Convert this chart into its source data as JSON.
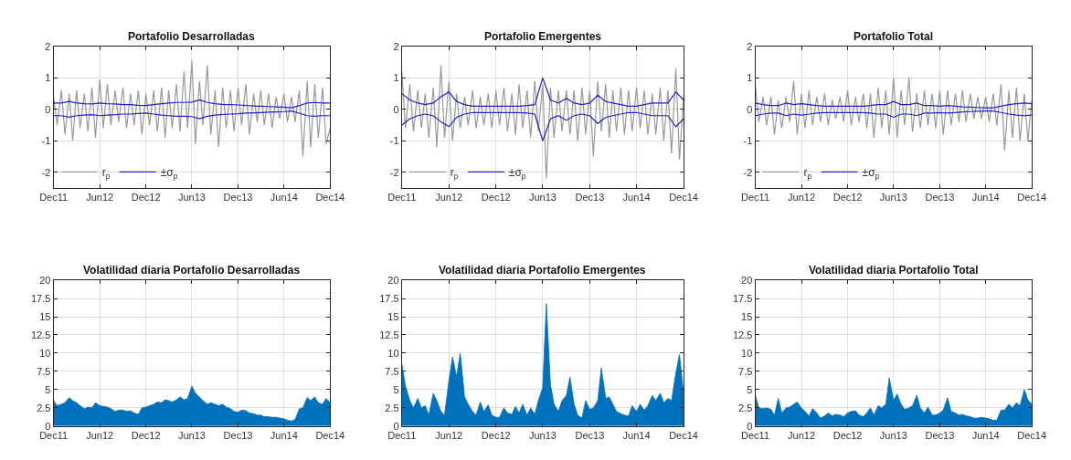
{
  "chart_data": [
    {
      "type": "line",
      "title": "Portafolio Desarrolladas",
      "x": [
        "2011-12-01",
        "2011-12-15",
        "2012-01-01",
        "2012-01-15",
        "2012-02-01",
        "2012-02-15",
        "2012-03-01",
        "2012-03-15",
        "2012-04-01",
        "2012-04-15",
        "2012-05-01",
        "2012-05-15",
        "2012-06-01",
        "2012-06-15",
        "2012-07-01",
        "2012-07-15",
        "2012-08-01",
        "2012-08-15",
        "2012-09-01",
        "2012-09-15",
        "2012-10-01",
        "2012-10-15",
        "2012-11-01",
        "2012-11-15",
        "2012-12-01",
        "2012-12-15",
        "2013-01-01",
        "2013-01-15",
        "2013-02-01",
        "2013-02-15",
        "2013-03-01",
        "2013-03-15",
        "2013-04-01",
        "2013-04-15",
        "2013-05-01",
        "2013-05-15",
        "2013-06-01",
        "2013-06-15",
        "2013-07-01",
        "2013-07-15",
        "2013-08-01",
        "2013-08-15",
        "2013-09-01",
        "2013-09-15",
        "2013-10-01",
        "2013-10-15",
        "2013-11-01",
        "2013-11-15",
        "2013-12-01",
        "2013-12-15",
        "2014-01-01",
        "2014-01-15",
        "2014-02-01",
        "2014-02-15",
        "2014-03-01",
        "2014-03-15",
        "2014-04-01",
        "2014-04-15",
        "2014-05-01",
        "2014-05-15",
        "2014-06-01",
        "2014-06-15",
        "2014-07-01",
        "2014-07-15",
        "2014-08-01",
        "2014-08-15",
        "2014-09-01",
        "2014-09-15",
        "2014-10-01",
        "2014-10-15",
        "2014-11-01",
        "2014-11-15",
        "2014-12-01"
      ],
      "xlim": [
        "2011-12-01",
        "2014-12-01"
      ],
      "xticks": [
        {
          "value": "2011-12-01",
          "label": "Dec11"
        },
        {
          "value": "2012-06-01",
          "label": "Jun12"
        },
        {
          "value": "2012-12-01",
          "label": "Dec12"
        },
        {
          "value": "2013-06-01",
          "label": "Jun13"
        },
        {
          "value": "2013-12-01",
          "label": "Dec13"
        },
        {
          "value": "2014-06-01",
          "label": "Jun14"
        },
        {
          "value": "2014-12-01",
          "label": "Dec14"
        }
      ],
      "ylim": [
        -2.5,
        2
      ],
      "yticks": [
        -2,
        -1,
        0,
        1,
        2
      ],
      "grid": true,
      "legend": "bottom left",
      "series": [
        {
          "name": "r$_{p}$",
          "color": "#999999",
          "values": [
            0.4,
            -0.5,
            0.6,
            -0.8,
            0.5,
            -1.0,
            0.6,
            -0.6,
            0.5,
            -0.7,
            0.7,
            -0.9,
            0.95,
            -0.6,
            0.8,
            -0.5,
            0.6,
            -0.4,
            0.7,
            -0.6,
            0.5,
            -0.5,
            0.6,
            -0.8,
            0.5,
            -0.5,
            0.6,
            -0.7,
            0.7,
            -0.9,
            0.6,
            -0.6,
            0.8,
            -0.7,
            1.2,
            -0.6,
            1.55,
            -1.1,
            0.9,
            -0.5,
            1.4,
            -0.8,
            0.6,
            -1.2,
            0.7,
            -0.6,
            0.6,
            -0.7,
            0.7,
            -0.5,
            0.8,
            -0.8,
            0.5,
            -0.4,
            0.6,
            -0.5,
            0.5,
            -0.6,
            0.4,
            -0.3,
            0.5,
            -0.4,
            0.4,
            -0.4,
            0.6,
            -1.5,
            0.9,
            -1.2,
            0.8,
            -0.9,
            0.7,
            -1.1,
            -0.6
          ]
        },
        {
          "name": "±σ$_{p}$",
          "color": "#1f1fcc",
          "x": [
            "2011-12-01",
            "2012-01-01",
            "2012-02-01",
            "2012-03-01",
            "2012-04-01",
            "2012-05-01",
            "2012-06-01",
            "2012-07-01",
            "2012-08-01",
            "2012-09-01",
            "2012-10-01",
            "2012-11-01",
            "2012-12-01",
            "2013-01-01",
            "2013-02-01",
            "2013-03-01",
            "2013-04-01",
            "2013-05-01",
            "2013-06-01",
            "2013-07-01",
            "2013-08-01",
            "2013-09-01",
            "2013-10-01",
            "2013-11-01",
            "2013-12-01",
            "2014-01-01",
            "2014-02-01",
            "2014-03-01",
            "2014-04-01",
            "2014-05-01",
            "2014-06-01",
            "2014-07-01",
            "2014-08-01",
            "2014-09-01",
            "2014-10-01",
            "2014-11-01",
            "2014-12-01"
          ],
          "values": [
            0.2,
            0.2,
            0.25,
            0.2,
            0.18,
            0.17,
            0.2,
            0.18,
            0.17,
            0.15,
            0.15,
            0.13,
            0.12,
            0.15,
            0.18,
            0.2,
            0.22,
            0.22,
            0.23,
            0.3,
            0.22,
            0.18,
            0.16,
            0.15,
            0.14,
            0.12,
            0.11,
            0.1,
            0.09,
            0.08,
            0.07,
            0.05,
            0.12,
            0.2,
            0.22,
            0.2,
            0.2
          ]
        },
        {
          "color": "#1f1fcc",
          "x": [
            "2011-12-01",
            "2012-01-01",
            "2012-02-01",
            "2012-03-01",
            "2012-04-01",
            "2012-05-01",
            "2012-06-01",
            "2012-07-01",
            "2012-08-01",
            "2012-09-01",
            "2012-10-01",
            "2012-11-01",
            "2012-12-01",
            "2013-01-01",
            "2013-02-01",
            "2013-03-01",
            "2013-04-01",
            "2013-05-01",
            "2013-06-01",
            "2013-07-01",
            "2013-08-01",
            "2013-09-01",
            "2013-10-01",
            "2013-11-01",
            "2013-12-01",
            "2014-01-01",
            "2014-02-01",
            "2014-03-01",
            "2014-04-01",
            "2014-05-01",
            "2014-06-01",
            "2014-07-01",
            "2014-08-01",
            "2014-09-01",
            "2014-10-01",
            "2014-11-01",
            "2014-12-01"
          ],
          "values": [
            -0.2,
            -0.2,
            -0.25,
            -0.2,
            -0.18,
            -0.17,
            -0.2,
            -0.18,
            -0.17,
            -0.15,
            -0.15,
            -0.13,
            -0.12,
            -0.15,
            -0.18,
            -0.2,
            -0.22,
            -0.22,
            -0.23,
            -0.3,
            -0.22,
            -0.18,
            -0.16,
            -0.15,
            -0.14,
            -0.12,
            -0.11,
            -0.1,
            -0.09,
            -0.08,
            -0.07,
            -0.05,
            -0.12,
            -0.2,
            -0.22,
            -0.2,
            -0.2
          ]
        }
      ]
    },
    {
      "type": "line",
      "title": "Portafolio Emergentes",
      "x": [
        "2011-12-01",
        "2011-12-15",
        "2012-01-01",
        "2012-01-15",
        "2012-02-01",
        "2012-02-15",
        "2012-03-01",
        "2012-03-15",
        "2012-04-01",
        "2012-04-15",
        "2012-05-01",
        "2012-05-15",
        "2012-06-01",
        "2012-06-15",
        "2012-07-01",
        "2012-07-15",
        "2012-08-01",
        "2012-08-15",
        "2012-09-01",
        "2012-09-15",
        "2012-10-01",
        "2012-10-15",
        "2012-11-01",
        "2012-11-15",
        "2012-12-01",
        "2012-12-15",
        "2013-01-01",
        "2013-01-15",
        "2013-02-01",
        "2013-02-15",
        "2013-03-01",
        "2013-03-15",
        "2013-04-01",
        "2013-04-15",
        "2013-05-01",
        "2013-05-15",
        "2013-06-01",
        "2013-06-15",
        "2013-07-01",
        "2013-07-15",
        "2013-08-01",
        "2013-08-15",
        "2013-09-01",
        "2013-09-15",
        "2013-10-01",
        "2013-10-15",
        "2013-11-01",
        "2013-11-15",
        "2013-12-01",
        "2013-12-15",
        "2014-01-01",
        "2014-01-15",
        "2014-02-01",
        "2014-02-15",
        "2014-03-01",
        "2014-03-15",
        "2014-04-01",
        "2014-04-15",
        "2014-05-01",
        "2014-05-15",
        "2014-06-01",
        "2014-06-15",
        "2014-07-01",
        "2014-07-15",
        "2014-08-01",
        "2014-08-15",
        "2014-09-01",
        "2014-09-15",
        "2014-10-01",
        "2014-10-15",
        "2014-11-01",
        "2014-11-15",
        "2014-12-01"
      ],
      "xlim": [
        "2011-12-01",
        "2014-12-01"
      ],
      "xticks": [
        {
          "value": "2011-12-01",
          "label": "Dec11"
        },
        {
          "value": "2012-06-01",
          "label": "Jun12"
        },
        {
          "value": "2012-12-01",
          "label": "Dec12"
        },
        {
          "value": "2013-06-01",
          "label": "Jun13"
        },
        {
          "value": "2013-12-01",
          "label": "Dec13"
        },
        {
          "value": "2014-06-01",
          "label": "Jun14"
        },
        {
          "value": "2014-12-01",
          "label": "Dec14"
        }
      ],
      "ylim": [
        -2.5,
        2
      ],
      "yticks": [
        -2,
        -1,
        0,
        1,
        2
      ],
      "grid": true,
      "legend": "bottom left",
      "series": [
        {
          "name": "r$_{p}$",
          "color": "#999999",
          "values": [
            1.2,
            -0.6,
            0.8,
            -0.7,
            0.6,
            -0.6,
            0.5,
            -0.9,
            0.7,
            -1.2,
            1.4,
            -0.9,
            0.9,
            -1.0,
            0.5,
            -0.6,
            0.4,
            -0.5,
            0.6,
            -0.6,
            0.4,
            -0.5,
            0.5,
            -0.6,
            0.6,
            -0.5,
            0.7,
            -0.7,
            0.5,
            -0.8,
            0.8,
            -0.6,
            0.6,
            -0.9,
            0.9,
            -0.7,
            0.8,
            -2.2,
            0.7,
            -0.9,
            0.6,
            -0.7,
            0.6,
            -0.8,
            0.6,
            -1.0,
            0.7,
            -0.8,
            0.6,
            -1.5,
            0.9,
            -0.7,
            0.8,
            -0.9,
            0.6,
            -0.7,
            0.7,
            -0.8,
            0.6,
            -0.7,
            0.7,
            -0.6,
            0.6,
            -0.8,
            0.5,
            -0.8,
            0.7,
            -1.0,
            0.6,
            -1.4,
            1.3,
            -1.6,
            0.4
          ]
        },
        {
          "name": "±σ$_{p}$",
          "color": "#1f1fcc",
          "x": [
            "2011-12-01",
            "2012-01-01",
            "2012-02-01",
            "2012-03-01",
            "2012-04-01",
            "2012-05-01",
            "2012-06-01",
            "2012-07-01",
            "2012-08-01",
            "2012-09-01",
            "2012-10-01",
            "2012-11-01",
            "2012-12-01",
            "2013-01-01",
            "2013-02-01",
            "2013-03-01",
            "2013-04-01",
            "2013-05-01",
            "2013-06-01",
            "2013-07-01",
            "2013-08-01",
            "2013-09-01",
            "2013-10-01",
            "2013-11-01",
            "2013-12-01",
            "2014-01-01",
            "2014-02-01",
            "2014-03-01",
            "2014-04-01",
            "2014-05-01",
            "2014-06-01",
            "2014-07-01",
            "2014-08-01",
            "2014-09-01",
            "2014-10-01",
            "2014-11-01",
            "2014-12-01"
          ],
          "values": [
            0.5,
            0.3,
            0.2,
            0.15,
            0.2,
            0.4,
            0.55,
            0.25,
            0.15,
            0.1,
            0.1,
            0.1,
            0.1,
            0.1,
            0.1,
            0.1,
            0.12,
            0.15,
            1.0,
            0.3,
            0.2,
            0.35,
            0.2,
            0.15,
            0.2,
            0.45,
            0.25,
            0.2,
            0.15,
            0.1,
            0.1,
            0.15,
            0.2,
            0.2,
            0.2,
            0.55,
            0.3
          ]
        },
        {
          "color": "#1f1fcc",
          "x": [
            "2011-12-01",
            "2012-01-01",
            "2012-02-01",
            "2012-03-01",
            "2012-04-01",
            "2012-05-01",
            "2012-06-01",
            "2012-07-01",
            "2012-08-01",
            "2012-09-01",
            "2012-10-01",
            "2012-11-01",
            "2012-12-01",
            "2013-01-01",
            "2013-02-01",
            "2013-03-01",
            "2013-04-01",
            "2013-05-01",
            "2013-06-01",
            "2013-07-01",
            "2013-08-01",
            "2013-09-01",
            "2013-10-01",
            "2013-11-01",
            "2013-12-01",
            "2014-01-01",
            "2014-02-01",
            "2014-03-01",
            "2014-04-01",
            "2014-05-01",
            "2014-06-01",
            "2014-07-01",
            "2014-08-01",
            "2014-09-01",
            "2014-10-01",
            "2014-11-01",
            "2014-12-01"
          ],
          "values": [
            -0.5,
            -0.3,
            -0.2,
            -0.15,
            -0.2,
            -0.4,
            -0.55,
            -0.25,
            -0.15,
            -0.1,
            -0.1,
            -0.1,
            -0.1,
            -0.1,
            -0.1,
            -0.1,
            -0.12,
            -0.15,
            -1.0,
            -0.3,
            -0.2,
            -0.35,
            -0.2,
            -0.15,
            -0.2,
            -0.45,
            -0.25,
            -0.2,
            -0.15,
            -0.1,
            -0.1,
            -0.15,
            -0.2,
            -0.2,
            -0.2,
            -0.55,
            -0.3
          ]
        }
      ]
    },
    {
      "type": "line",
      "title": "Portafolio Total",
      "x": [
        "2011-12-01",
        "2011-12-15",
        "2012-01-01",
        "2012-01-15",
        "2012-02-01",
        "2012-02-15",
        "2012-03-01",
        "2012-03-15",
        "2012-04-01",
        "2012-04-15",
        "2012-05-01",
        "2012-05-15",
        "2012-06-01",
        "2012-06-15",
        "2012-07-01",
        "2012-07-15",
        "2012-08-01",
        "2012-08-15",
        "2012-09-01",
        "2012-09-15",
        "2012-10-01",
        "2012-10-15",
        "2012-11-01",
        "2012-11-15",
        "2012-12-01",
        "2012-12-15",
        "2013-01-01",
        "2013-01-15",
        "2013-02-01",
        "2013-02-15",
        "2013-03-01",
        "2013-03-15",
        "2013-04-01",
        "2013-04-15",
        "2013-05-01",
        "2013-05-15",
        "2013-06-01",
        "2013-06-15",
        "2013-07-01",
        "2013-07-15",
        "2013-08-01",
        "2013-08-15",
        "2013-09-01",
        "2013-09-15",
        "2013-10-01",
        "2013-10-15",
        "2013-11-01",
        "2013-11-15",
        "2013-12-01",
        "2013-12-15",
        "2014-01-01",
        "2014-01-15",
        "2014-02-01",
        "2014-02-15",
        "2014-03-01",
        "2014-03-15",
        "2014-04-01",
        "2014-04-15",
        "2014-05-01",
        "2014-05-15",
        "2014-06-01",
        "2014-06-15",
        "2014-07-01",
        "2014-07-15",
        "2014-08-01",
        "2014-08-15",
        "2014-09-01",
        "2014-09-15",
        "2014-10-01",
        "2014-10-15",
        "2014-11-01",
        "2014-11-15",
        "2014-12-01"
      ],
      "xlim": [
        "2011-12-01",
        "2014-12-01"
      ],
      "xticks": [
        {
          "value": "2011-12-01",
          "label": "Dec11"
        },
        {
          "value": "2012-06-01",
          "label": "Jun12"
        },
        {
          "value": "2012-12-01",
          "label": "Dec12"
        },
        {
          "value": "2013-06-01",
          "label": "Jun13"
        },
        {
          "value": "2013-12-01",
          "label": "Dec13"
        },
        {
          "value": "2014-06-01",
          "label": "Jun14"
        },
        {
          "value": "2014-12-01",
          "label": "Dec14"
        }
      ],
      "ylim": [
        -2.5,
        2
      ],
      "yticks": [
        -2,
        -1,
        0,
        1,
        2
      ],
      "grid": true,
      "legend": "bottom left",
      "series": [
        {
          "name": "r$_{p}$",
          "color": "#999999",
          "values": [
            0.8,
            -0.4,
            0.4,
            -0.5,
            0.4,
            -0.8,
            0.3,
            -0.6,
            0.4,
            -0.4,
            0.9,
            -0.8,
            0.5,
            -0.6,
            0.6,
            -0.5,
            0.4,
            -0.4,
            0.5,
            -0.5,
            0.3,
            -0.3,
            0.4,
            -0.4,
            0.6,
            -0.5,
            0.4,
            -0.4,
            0.5,
            -0.6,
            0.5,
            -0.9,
            0.7,
            -0.6,
            0.6,
            -0.8,
            1.0,
            -0.9,
            0.6,
            -0.5,
            1.0,
            -0.7,
            0.5,
            -0.6,
            0.6,
            -0.5,
            0.5,
            -0.6,
            0.6,
            -0.8,
            0.6,
            -0.5,
            0.5,
            -0.4,
            0.6,
            -0.4,
            0.5,
            -0.3,
            0.4,
            -0.3,
            0.4,
            -0.4,
            0.5,
            -0.5,
            0.8,
            -1.3,
            0.6,
            -0.9,
            0.7,
            -1.0,
            0.5,
            -1.0,
            0.3
          ]
        },
        {
          "name": "±σ$_{p}$",
          "color": "#1f1fcc",
          "x": [
            "2011-12-01",
            "2012-01-01",
            "2012-02-01",
            "2012-03-01",
            "2012-04-01",
            "2012-05-01",
            "2012-06-01",
            "2012-07-01",
            "2012-08-01",
            "2012-09-01",
            "2012-10-01",
            "2012-11-01",
            "2012-12-01",
            "2013-01-01",
            "2013-02-01",
            "2013-03-01",
            "2013-04-01",
            "2013-05-01",
            "2013-06-01",
            "2013-07-01",
            "2013-08-01",
            "2013-09-01",
            "2013-10-01",
            "2013-11-01",
            "2013-12-01",
            "2014-01-01",
            "2014-02-01",
            "2014-03-01",
            "2014-04-01",
            "2014-05-01",
            "2014-06-01",
            "2014-07-01",
            "2014-08-01",
            "2014-09-01",
            "2014-10-01",
            "2014-11-01",
            "2014-12-01"
          ],
          "values": [
            0.2,
            0.15,
            0.12,
            0.12,
            0.2,
            0.15,
            0.18,
            0.15,
            0.12,
            0.1,
            0.1,
            0.1,
            0.1,
            0.1,
            0.1,
            0.12,
            0.15,
            0.15,
            0.25,
            0.15,
            0.15,
            0.2,
            0.12,
            0.12,
            0.1,
            0.12,
            0.1,
            0.08,
            0.07,
            0.06,
            0.05,
            0.05,
            0.1,
            0.15,
            0.18,
            0.2,
            0.18
          ]
        },
        {
          "color": "#1f1fcc",
          "x": [
            "2011-12-01",
            "2012-01-01",
            "2012-02-01",
            "2012-03-01",
            "2012-04-01",
            "2012-05-01",
            "2012-06-01",
            "2012-07-01",
            "2012-08-01",
            "2012-09-01",
            "2012-10-01",
            "2012-11-01",
            "2012-12-01",
            "2013-01-01",
            "2013-02-01",
            "2013-03-01",
            "2013-04-01",
            "2013-05-01",
            "2013-06-01",
            "2013-07-01",
            "2013-08-01",
            "2013-09-01",
            "2013-10-01",
            "2013-11-01",
            "2013-12-01",
            "2014-01-01",
            "2014-02-01",
            "2014-03-01",
            "2014-04-01",
            "2014-05-01",
            "2014-06-01",
            "2014-07-01",
            "2014-08-01",
            "2014-09-01",
            "2014-10-01",
            "2014-11-01",
            "2014-12-01"
          ],
          "values": [
            -0.2,
            -0.15,
            -0.12,
            -0.12,
            -0.2,
            -0.15,
            -0.18,
            -0.15,
            -0.12,
            -0.1,
            -0.1,
            -0.1,
            -0.1,
            -0.1,
            -0.1,
            -0.12,
            -0.15,
            -0.15,
            -0.25,
            -0.15,
            -0.15,
            -0.2,
            -0.12,
            -0.12,
            -0.1,
            -0.12,
            -0.1,
            -0.08,
            -0.07,
            -0.06,
            -0.05,
            -0.05,
            -0.1,
            -0.15,
            -0.18,
            -0.2,
            -0.18
          ]
        }
      ]
    },
    {
      "type": "area",
      "title": "Volatilidad diaria Portafolio Desarrolladas",
      "x": [
        "2011-12-01",
        "2011-12-15",
        "2012-01-01",
        "2012-01-15",
        "2012-02-01",
        "2012-02-15",
        "2012-03-01",
        "2012-03-15",
        "2012-04-01",
        "2012-04-15",
        "2012-05-01",
        "2012-05-15",
        "2012-06-01",
        "2012-06-15",
        "2012-07-01",
        "2012-07-15",
        "2012-08-01",
        "2012-08-15",
        "2012-09-01",
        "2012-09-15",
        "2012-10-01",
        "2012-10-15",
        "2012-11-01",
        "2012-11-15",
        "2012-12-01",
        "2012-12-15",
        "2013-01-01",
        "2013-01-15",
        "2013-02-01",
        "2013-02-15",
        "2013-03-01",
        "2013-03-15",
        "2013-04-01",
        "2013-04-15",
        "2013-05-01",
        "2013-05-15",
        "2013-06-01",
        "2013-06-15",
        "2013-07-01",
        "2013-07-15",
        "2013-08-01",
        "2013-08-15",
        "2013-09-01",
        "2013-09-15",
        "2013-10-01",
        "2013-10-15",
        "2013-11-01",
        "2013-11-15",
        "2013-12-01",
        "2013-12-15",
        "2014-01-01",
        "2014-01-15",
        "2014-02-01",
        "2014-02-15",
        "2014-03-01",
        "2014-03-15",
        "2014-04-01",
        "2014-04-15",
        "2014-05-01",
        "2014-05-15",
        "2014-06-01",
        "2014-06-15",
        "2014-07-01",
        "2014-07-15",
        "2014-08-01",
        "2014-08-15",
        "2014-09-01",
        "2014-09-15",
        "2014-10-01",
        "2014-10-15",
        "2014-11-01",
        "2014-11-15",
        "2014-12-01"
      ],
      "xlim": [
        "2011-12-01",
        "2014-12-01"
      ],
      "xticks": [
        {
          "value": "2011-12-01",
          "label": "Dec11"
        },
        {
          "value": "2012-06-01",
          "label": "Jun12"
        },
        {
          "value": "2012-12-01",
          "label": "Dec12"
        },
        {
          "value": "2013-06-01",
          "label": "Jun13"
        },
        {
          "value": "2013-12-01",
          "label": "Dec13"
        },
        {
          "value": "2014-06-01",
          "label": "Jun14"
        },
        {
          "value": "2014-12-01",
          "label": "Dec14"
        }
      ],
      "ylim": [
        0,
        20
      ],
      "yticks": [
        0,
        2.5,
        5,
        7.5,
        10,
        12.5,
        15,
        17.5,
        20
      ],
      "grid": true,
      "series": [
        {
          "color": "#0072bd",
          "values": [
            3.5,
            2.8,
            3.0,
            3.2,
            3.9,
            3.5,
            3.2,
            2.8,
            2.4,
            2.6,
            2.5,
            3.2,
            2.8,
            2.7,
            2.6,
            2.4,
            2.0,
            2.2,
            2.2,
            2.0,
            2.1,
            1.8,
            1.6,
            2.5,
            2.6,
            2.8,
            3.0,
            3.3,
            3.2,
            3.6,
            3.5,
            3.3,
            3.6,
            4.0,
            3.6,
            3.8,
            5.5,
            4.5,
            4.0,
            3.5,
            3.0,
            3.2,
            3.0,
            2.8,
            3.0,
            2.6,
            2.4,
            2.0,
            1.9,
            2.2,
            2.1,
            1.8,
            1.7,
            1.5,
            1.5,
            1.3,
            1.3,
            1.2,
            1.2,
            1.1,
            1.0,
            0.8,
            0.7,
            0.9,
            2.4,
            2.5,
            3.9,
            3.5,
            4.0,
            3.2,
            3.0,
            3.8,
            3.2
          ]
        }
      ]
    },
    {
      "type": "area",
      "title": "Volatilidad diaria Portafolio Emergentes",
      "x": [
        "2011-12-01",
        "2011-12-15",
        "2012-01-01",
        "2012-01-15",
        "2012-02-01",
        "2012-02-15",
        "2012-03-01",
        "2012-03-15",
        "2012-04-01",
        "2012-04-15",
        "2012-05-01",
        "2012-05-15",
        "2012-06-01",
        "2012-06-15",
        "2012-07-01",
        "2012-07-15",
        "2012-08-01",
        "2012-08-15",
        "2012-09-01",
        "2012-09-15",
        "2012-10-01",
        "2012-10-15",
        "2012-11-01",
        "2012-11-15",
        "2012-12-01",
        "2012-12-15",
        "2013-01-01",
        "2013-01-15",
        "2013-02-01",
        "2013-02-15",
        "2013-03-01",
        "2013-03-15",
        "2013-04-01",
        "2013-04-15",
        "2013-05-01",
        "2013-05-15",
        "2013-06-01",
        "2013-06-15",
        "2013-07-01",
        "2013-07-15",
        "2013-08-01",
        "2013-08-15",
        "2013-09-01",
        "2013-09-15",
        "2013-10-01",
        "2013-10-15",
        "2013-11-01",
        "2013-11-15",
        "2013-12-01",
        "2013-12-15",
        "2014-01-01",
        "2014-01-15",
        "2014-02-01",
        "2014-02-15",
        "2014-03-01",
        "2014-03-15",
        "2014-04-01",
        "2014-04-15",
        "2014-05-01",
        "2014-05-15",
        "2014-06-01",
        "2014-06-15",
        "2014-07-01",
        "2014-07-15",
        "2014-08-01",
        "2014-08-15",
        "2014-09-01",
        "2014-09-15",
        "2014-10-01",
        "2014-10-15",
        "2014-11-01",
        "2014-11-15",
        "2014-12-01"
      ],
      "xlim": [
        "2011-12-01",
        "2014-12-01"
      ],
      "xticks": [
        {
          "value": "2011-12-01",
          "label": "Dec11"
        },
        {
          "value": "2012-06-01",
          "label": "Jun12"
        },
        {
          "value": "2012-12-01",
          "label": "Dec12"
        },
        {
          "value": "2013-06-01",
          "label": "Jun13"
        },
        {
          "value": "2013-12-01",
          "label": "Dec13"
        },
        {
          "value": "2014-06-01",
          "label": "Jun14"
        },
        {
          "value": "2014-12-01",
          "label": "Dec14"
        }
      ],
      "ylim": [
        0,
        20
      ],
      "yticks": [
        0,
        2.5,
        5,
        7.5,
        10,
        12.5,
        15,
        17.5,
        20
      ],
      "grid": true,
      "series": [
        {
          "color": "#0072bd",
          "values": [
            8.5,
            5.5,
            3.5,
            2.5,
            3.8,
            2.5,
            2.8,
            1.5,
            4.5,
            3.5,
            2.0,
            1.5,
            6.2,
            9.5,
            6.8,
            10.0,
            4.0,
            3.0,
            2.0,
            1.5,
            3.3,
            2.0,
            2.9,
            1.5,
            1.2,
            1.2,
            2.5,
            1.8,
            1.6,
            2.7,
            1.8,
            3.0,
            1.5,
            2.5,
            1.6,
            3.5,
            5.3,
            16.8,
            5.7,
            3.0,
            2.0,
            3.5,
            4.2,
            6.7,
            3.0,
            1.5,
            1.1,
            3.5,
            2.3,
            2.5,
            3.5,
            8.0,
            3.8,
            4.0,
            3.0,
            2.0,
            1.7,
            1.5,
            1.4,
            2.8,
            2.0,
            3.0,
            2.2,
            2.8,
            4.2,
            3.5,
            4.5,
            3.2,
            3.8,
            3.5,
            7.3,
            9.8,
            4.5
          ]
        }
      ]
    },
    {
      "type": "area",
      "title": "Volatilidad diaria Portafolio Total",
      "x": [
        "2011-12-01",
        "2011-12-15",
        "2012-01-01",
        "2012-01-15",
        "2012-02-01",
        "2012-02-15",
        "2012-03-01",
        "2012-03-15",
        "2012-04-01",
        "2012-04-15",
        "2012-05-01",
        "2012-05-15",
        "2012-06-01",
        "2012-06-15",
        "2012-07-01",
        "2012-07-15",
        "2012-08-01",
        "2012-08-15",
        "2012-09-01",
        "2012-09-15",
        "2012-10-01",
        "2012-10-15",
        "2012-11-01",
        "2012-11-15",
        "2012-12-01",
        "2012-12-15",
        "2013-01-01",
        "2013-01-15",
        "2013-02-01",
        "2013-02-15",
        "2013-03-01",
        "2013-03-15",
        "2013-04-01",
        "2013-04-15",
        "2013-05-01",
        "2013-05-15",
        "2013-06-01",
        "2013-06-15",
        "2013-07-01",
        "2013-07-15",
        "2013-08-01",
        "2013-08-15",
        "2013-09-01",
        "2013-09-15",
        "2013-10-01",
        "2013-10-15",
        "2013-11-01",
        "2013-11-15",
        "2013-12-01",
        "2013-12-15",
        "2014-01-01",
        "2014-01-15",
        "2014-02-01",
        "2014-02-15",
        "2014-03-01",
        "2014-03-15",
        "2014-04-01",
        "2014-04-15",
        "2014-05-01",
        "2014-05-15",
        "2014-06-01",
        "2014-06-15",
        "2014-07-01",
        "2014-07-15",
        "2014-08-01",
        "2014-08-15",
        "2014-09-01",
        "2014-09-15",
        "2014-10-01",
        "2014-10-15",
        "2014-11-01",
        "2014-11-15",
        "2014-12-01"
      ],
      "xlim": [
        "2011-12-01",
        "2014-12-01"
      ],
      "xticks": [
        {
          "value": "2011-12-01",
          "label": "Dec11"
        },
        {
          "value": "2012-06-01",
          "label": "Jun12"
        },
        {
          "value": "2012-12-01",
          "label": "Dec12"
        },
        {
          "value": "2013-06-01",
          "label": "Jun13"
        },
        {
          "value": "2013-12-01",
          "label": "Dec13"
        },
        {
          "value": "2014-06-01",
          "label": "Jun14"
        },
        {
          "value": "2014-12-01",
          "label": "Dec14"
        }
      ],
      "ylim": [
        0,
        20
      ],
      "yticks": [
        0,
        2.5,
        5,
        7.5,
        10,
        12.5,
        15,
        17.5,
        20
      ],
      "grid": true,
      "series": [
        {
          "color": "#0072bd",
          "values": [
            4.2,
            2.5,
            2.4,
            2.5,
            2.3,
            1.5,
            3.8,
            1.8,
            2.5,
            2.6,
            3.0,
            3.3,
            2.5,
            2.0,
            1.4,
            2.4,
            1.8,
            1.1,
            1.4,
            1.8,
            1.4,
            1.6,
            1.5,
            1.3,
            1.8,
            2.0,
            2.1,
            1.5,
            1.3,
            1.8,
            2.5,
            1.5,
            2.8,
            2.5,
            3.0,
            6.6,
            3.5,
            4.4,
            3.0,
            2.3,
            2.5,
            2.8,
            4.2,
            2.5,
            1.8,
            2.6,
            1.5,
            1.5,
            1.8,
            2.2,
            3.9,
            2.0,
            1.8,
            1.5,
            1.6,
            1.4,
            1.3,
            1.1,
            1.1,
            1.2,
            1.1,
            1.0,
            0.8,
            0.8,
            2.2,
            2.2,
            3.0,
            2.5,
            3.2,
            2.8,
            5.0,
            3.6,
            3.0
          ]
        }
      ]
    }
  ]
}
